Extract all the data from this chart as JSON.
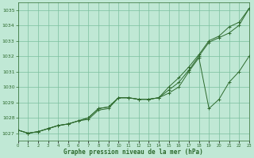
{
  "xlabel": "Graphe pression niveau de la mer (hPa)",
  "x": [
    0,
    1,
    2,
    3,
    4,
    5,
    6,
    7,
    8,
    9,
    10,
    11,
    12,
    13,
    14,
    15,
    16,
    17,
    18,
    19,
    20,
    21,
    22,
    23
  ],
  "line1": [
    1027.2,
    1027.0,
    1027.1,
    1027.3,
    1027.5,
    1027.6,
    1027.8,
    1027.9,
    1028.5,
    1028.6,
    1029.3,
    1029.3,
    1029.2,
    1029.2,
    1029.3,
    1030.0,
    1030.6,
    1031.3,
    1032.1,
    1033.0,
    1033.3,
    1033.9,
    1034.2,
    1035.1
  ],
  "line2": [
    1027.2,
    1027.0,
    1027.1,
    1027.3,
    1027.5,
    1027.6,
    1027.8,
    1028.0,
    1028.6,
    1028.7,
    1029.3,
    1029.3,
    1029.2,
    1029.2,
    1029.3,
    1029.8,
    1030.3,
    1031.1,
    1032.0,
    1032.9,
    1033.2,
    1033.5,
    1034.0,
    1035.1
  ],
  "line3": [
    1027.2,
    1027.0,
    1027.1,
    1027.3,
    1027.5,
    1027.6,
    1027.8,
    1028.0,
    1028.6,
    1028.7,
    1029.3,
    1029.3,
    1029.2,
    1029.2,
    1029.3,
    1029.6,
    1030.0,
    1031.0,
    1031.9,
    1028.6,
    1029.2,
    1030.3,
    1031.0,
    1032.0
  ],
  "line_color": "#2d6a2d",
  "bg_color": "#c0e8d5",
  "grid_color": "#7bbf9e",
  "text_color": "#2d6a2d",
  "ylim": [
    1026.5,
    1035.5
  ],
  "yticks": [
    1027,
    1028,
    1029,
    1030,
    1031,
    1032,
    1033,
    1034,
    1035
  ]
}
